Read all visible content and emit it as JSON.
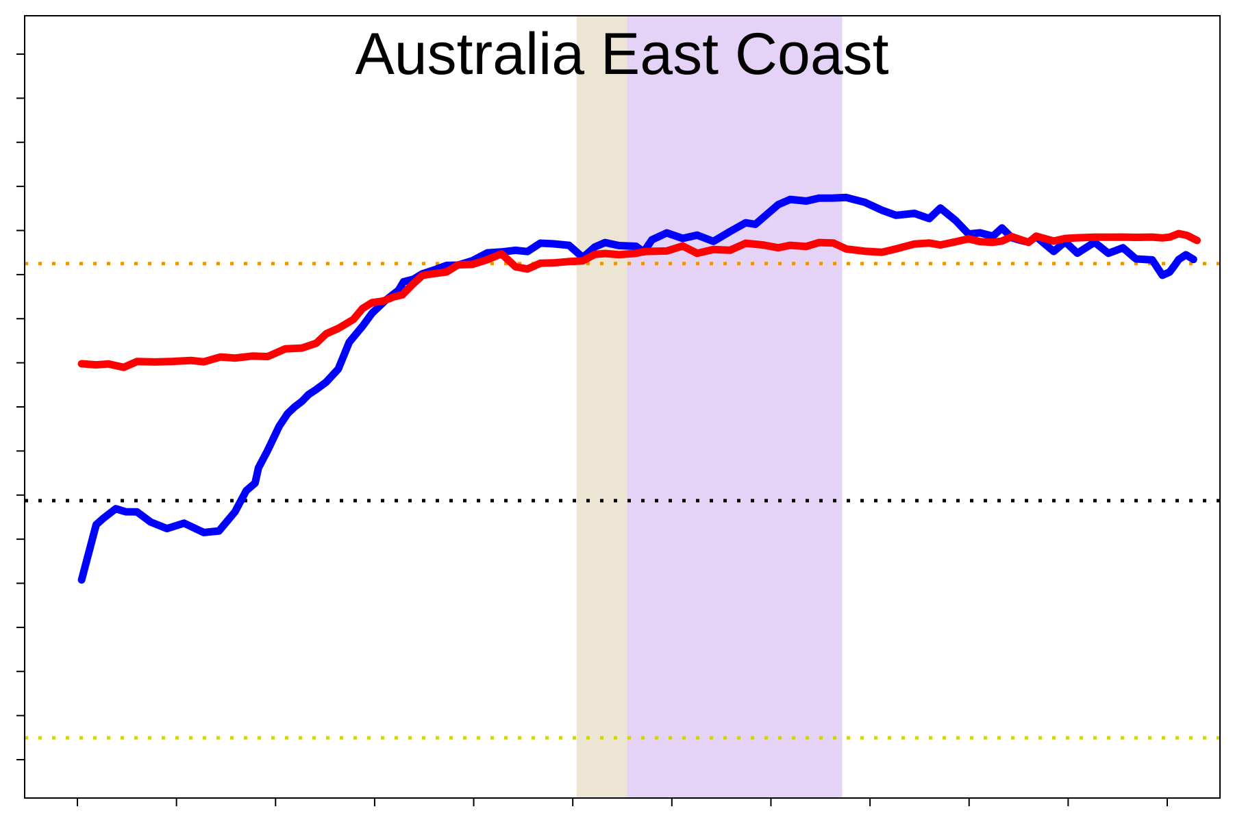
{
  "chart_data": {
    "type": "line",
    "title": "Australia East Coast",
    "xlabel": "",
    "ylabel": "",
    "xlim": [
      0,
      1
    ],
    "ylim": [
      0,
      1
    ],
    "grid": false,
    "x_tick_count": 12,
    "y_tick_count": 17,
    "shaded_regions": [
      {
        "x0": 0.4617,
        "x1": 0.504,
        "color": "#ddcfb0"
      },
      {
        "x0": 0.504,
        "x1": 0.684,
        "color": "#d0aef0"
      }
    ],
    "reference_lines": [
      {
        "y": 0.6832,
        "color": "#e8960a",
        "style": "dotted"
      },
      {
        "y": 0.3801,
        "color": "#000000",
        "style": "dotted"
      },
      {
        "y": 0.0769,
        "color": "#d4d400",
        "style": "dotted"
      }
    ],
    "series": [
      {
        "color": "#0000ff",
        "x": [
          0.0476,
          0.0598,
          0.0658,
          0.0762,
          0.0846,
          0.094,
          0.1055,
          0.119,
          0.1334,
          0.1498,
          0.1626,
          0.176,
          0.1854,
          0.1928,
          0.1956,
          0.2033,
          0.213,
          0.22,
          0.2258,
          0.232,
          0.2374,
          0.2436,
          0.2522,
          0.2624,
          0.2715,
          0.2827,
          0.2906,
          0.3021,
          0.3128,
          0.317,
          0.3253,
          0.3326,
          0.3421,
          0.3529,
          0.3626,
          0.3745,
          0.3871,
          0.3989,
          0.4107,
          0.4206,
          0.4314,
          0.442,
          0.4554,
          0.467,
          0.477,
          0.4856,
          0.4972,
          0.5114,
          0.5179,
          0.5248,
          0.5372,
          0.5505,
          0.5626,
          0.5762,
          0.5901,
          0.6032,
          0.6113,
          0.6178,
          0.6304,
          0.6404,
          0.6539,
          0.6645,
          0.6765,
          0.6873,
          0.7028,
          0.717,
          0.729,
          0.7444,
          0.7568,
          0.7661,
          0.7787,
          0.7896,
          0.7994,
          0.81,
          0.8176,
          0.8259,
          0.8327,
          0.8399,
          0.8462,
          0.8609,
          0.8705,
          0.8807,
          0.895,
          0.9067,
          0.9188,
          0.9297,
          0.9433,
          0.9518,
          0.9578,
          0.9621,
          0.9655,
          0.9715,
          0.9778
        ],
        "y": [
          0.2789,
          0.3494,
          0.3575,
          0.3698,
          0.3659,
          0.3658,
          0.3527,
          0.3445,
          0.3513,
          0.3394,
          0.3414,
          0.3659,
          0.3929,
          0.4026,
          0.422,
          0.4445,
          0.4755,
          0.4915,
          0.4999,
          0.5071,
          0.5157,
          0.522,
          0.5316,
          0.5485,
          0.5827,
          0.6032,
          0.6197,
          0.6364,
          0.6491,
          0.66,
          0.6632,
          0.67,
          0.6748,
          0.6808,
          0.6813,
          0.6869,
          0.6969,
          0.6981,
          0.7002,
          0.6986,
          0.7093,
          0.7085,
          0.7066,
          0.691,
          0.7045,
          0.7101,
          0.7062,
          0.7053,
          0.6982,
          0.7137,
          0.7224,
          0.7154,
          0.7195,
          0.7116,
          0.7242,
          0.7354,
          0.7334,
          0.742,
          0.7585,
          0.7652,
          0.7631,
          0.7668,
          0.767,
          0.7677,
          0.7616,
          0.7515,
          0.7449,
          0.7474,
          0.7407,
          0.7542,
          0.7385,
          0.721,
          0.7225,
          0.7182,
          0.7287,
          0.7162,
          0.7131,
          0.7105,
          0.7177,
          0.6987,
          0.711,
          0.6965,
          0.7104,
          0.6963,
          0.7034,
          0.6891,
          0.6879,
          0.6682,
          0.6723,
          0.681,
          0.6884,
          0.6945,
          0.6885
        ]
      },
      {
        "color": "#ff0000",
        "x": [
          0.0476,
          0.0598,
          0.0699,
          0.0829,
          0.094,
          0.109,
          0.124,
          0.139,
          0.1498,
          0.1639,
          0.176,
          0.1905,
          0.2033,
          0.218,
          0.232,
          0.244,
          0.2522,
          0.2625,
          0.275,
          0.2827,
          0.2906,
          0.3,
          0.309,
          0.316,
          0.324,
          0.3328,
          0.3421,
          0.3529,
          0.3626,
          0.3745,
          0.3871,
          0.3989,
          0.4107,
          0.4206,
          0.4314,
          0.442,
          0.4554,
          0.467,
          0.477,
          0.4856,
          0.4972,
          0.5114,
          0.5179,
          0.5248,
          0.5372,
          0.5505,
          0.5626,
          0.5762,
          0.5901,
          0.6032,
          0.6178,
          0.6304,
          0.6404,
          0.6539,
          0.6645,
          0.6765,
          0.6873,
          0.7028,
          0.717,
          0.729,
          0.7444,
          0.7568,
          0.7661,
          0.7787,
          0.7896,
          0.7994,
          0.81,
          0.8176,
          0.8259,
          0.8399,
          0.8462,
          0.8609,
          0.8705,
          0.8807,
          0.895,
          0.9067,
          0.9188,
          0.9297,
          0.9433,
          0.9518,
          0.9578,
          0.9655,
          0.9726,
          0.9808
        ],
        "y": [
          0.5552,
          0.5538,
          0.5549,
          0.5506,
          0.558,
          0.5574,
          0.5581,
          0.5594,
          0.5576,
          0.5638,
          0.5624,
          0.565,
          0.5644,
          0.5742,
          0.5752,
          0.5814,
          0.5934,
          0.6004,
          0.6118,
          0.6258,
          0.6333,
          0.6354,
          0.6407,
          0.6433,
          0.6559,
          0.668,
          0.6703,
          0.6724,
          0.6816,
          0.6821,
          0.6883,
          0.6956,
          0.6791,
          0.6763,
          0.6836,
          0.6841,
          0.6858,
          0.6868,
          0.695,
          0.6961,
          0.6946,
          0.6962,
          0.6985,
          0.6989,
          0.6993,
          0.7057,
          0.6963,
          0.7012,
          0.7003,
          0.7092,
          0.707,
          0.7034,
          0.7066,
          0.7051,
          0.7101,
          0.7095,
          0.7019,
          0.699,
          0.6976,
          0.702,
          0.7082,
          0.7095,
          0.707,
          0.711,
          0.7149,
          0.7112,
          0.7104,
          0.712,
          0.7177,
          0.7103,
          0.7182,
          0.712,
          0.7153,
          0.7162,
          0.717,
          0.717,
          0.7171,
          0.7167,
          0.7171,
          0.716,
          0.717,
          0.7215,
          0.7191,
          0.7128
        ]
      }
    ]
  }
}
